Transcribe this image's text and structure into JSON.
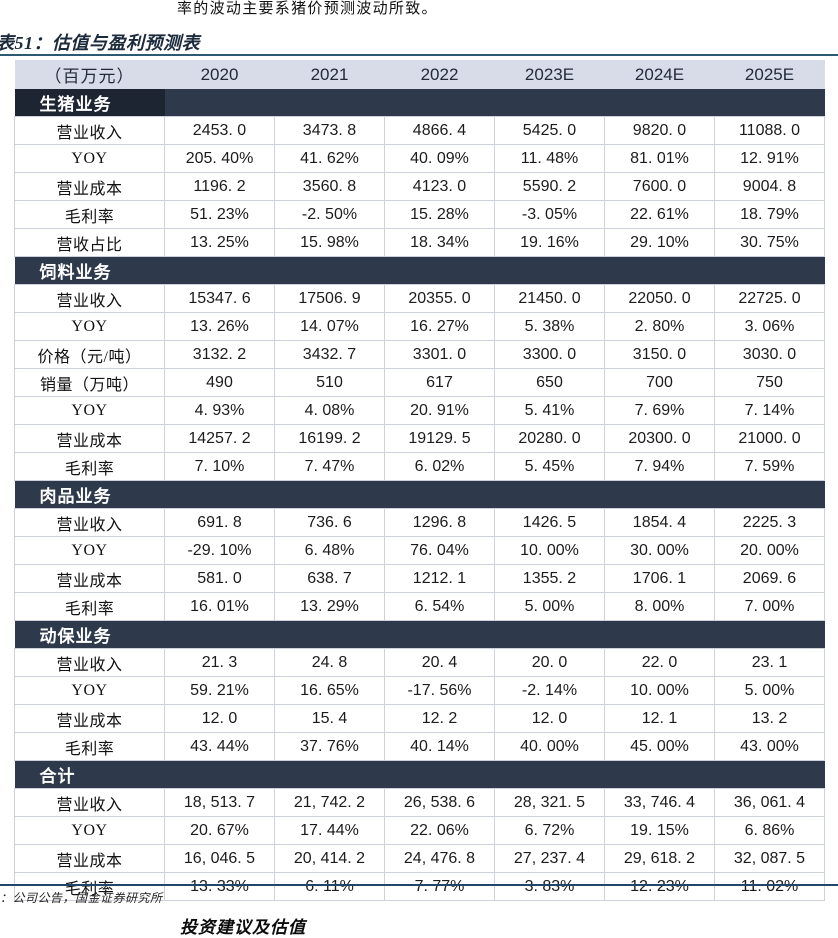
{
  "page": {
    "top_paragraph": "率的波动主要系猪价预测波动所致。",
    "table_title": "表51：估值与盈利预测表",
    "source_note": "：公司公告，国金证券研究所",
    "bottom_heading": "投资建议及估值"
  },
  "table": {
    "unit_label": "（百万元）",
    "columns": [
      "2020",
      "2021",
      "2022",
      "2023E",
      "2024E",
      "2025E"
    ],
    "sections": [
      {
        "title": "生猪业务",
        "rows": [
          {
            "label": "营业收入",
            "values": [
              "2453. 0",
              "3473. 8",
              "4866. 4",
              "5425. 0",
              "9820. 0",
              "11088. 0"
            ]
          },
          {
            "label": "YOY",
            "values": [
              "205. 40%",
              "41. 62%",
              "40. 09%",
              "11. 48%",
              "81. 01%",
              "12. 91%"
            ]
          },
          {
            "label": "营业成本",
            "values": [
              "1196. 2",
              "3560. 8",
              "4123. 0",
              "5590. 2",
              "7600. 0",
              "9004. 8"
            ]
          },
          {
            "label": "毛利率",
            "values": [
              "51. 23%",
              "-2. 50%",
              "15. 28%",
              "-3. 05%",
              "22. 61%",
              "18. 79%"
            ]
          },
          {
            "label": "营收占比",
            "values": [
              "13. 25%",
              "15. 98%",
              "18. 34%",
              "19. 16%",
              "29. 10%",
              "30. 75%"
            ]
          }
        ]
      },
      {
        "title": "饲料业务",
        "rows": [
          {
            "label": "营业收入",
            "values": [
              "15347. 6",
              "17506. 9",
              "20355. 0",
              "21450. 0",
              "22050. 0",
              "22725. 0"
            ]
          },
          {
            "label": "YOY",
            "values": [
              "13. 26%",
              "14. 07%",
              "16. 27%",
              "5. 38%",
              "2. 80%",
              "3. 06%"
            ]
          },
          {
            "label": "价格（元/吨）",
            "values": [
              "3132. 2",
              "3432. 7",
              "3301. 0",
              "3300. 0",
              "3150. 0",
              "3030. 0"
            ]
          },
          {
            "label": "销量（万吨）",
            "values": [
              "490",
              "510",
              "617",
              "650",
              "700",
              "750"
            ]
          },
          {
            "label": "YOY",
            "values": [
              "4. 93%",
              "4. 08%",
              "20. 91%",
              "5. 41%",
              "7. 69%",
              "7. 14%"
            ]
          },
          {
            "label": "营业成本",
            "values": [
              "14257. 2",
              "16199. 2",
              "19129. 5",
              "20280. 0",
              "20300. 0",
              "21000. 0"
            ]
          },
          {
            "label": "毛利率",
            "values": [
              "7. 10%",
              "7. 47%",
              "6. 02%",
              "5. 45%",
              "7. 94%",
              "7. 59%"
            ]
          }
        ]
      },
      {
        "title": "肉品业务",
        "rows": [
          {
            "label": "营业收入",
            "values": [
              "691. 8",
              "736. 6",
              "1296. 8",
              "1426. 5",
              "1854. 4",
              "2225. 3"
            ]
          },
          {
            "label": "YOY",
            "values": [
              "-29. 10%",
              "6. 48%",
              "76. 04%",
              "10. 00%",
              "30. 00%",
              "20. 00%"
            ]
          },
          {
            "label": "营业成本",
            "values": [
              "581. 0",
              "638. 7",
              "1212. 1",
              "1355. 2",
              "1706. 1",
              "2069. 6"
            ]
          },
          {
            "label": "毛利率",
            "values": [
              "16. 01%",
              "13. 29%",
              "6. 54%",
              "5. 00%",
              "8. 00%",
              "7. 00%"
            ]
          }
        ]
      },
      {
        "title": "动保业务",
        "rows": [
          {
            "label": "营业收入",
            "values": [
              "21. 3",
              "24. 8",
              "20. 4",
              "20. 0",
              "22. 0",
              "23. 1"
            ]
          },
          {
            "label": "YOY",
            "values": [
              "59. 21%",
              "16. 65%",
              "-17. 56%",
              "-2. 14%",
              "10. 00%",
              "5. 00%"
            ]
          },
          {
            "label": "营业成本",
            "values": [
              "12. 0",
              "15. 4",
              "12. 2",
              "12. 0",
              "12. 1",
              "13. 2"
            ]
          },
          {
            "label": "毛利率",
            "values": [
              "43. 44%",
              "37. 76%",
              "40. 14%",
              "40. 00%",
              "45. 00%",
              "43. 00%"
            ]
          }
        ]
      },
      {
        "title": "合计",
        "rows": [
          {
            "label": "营业收入",
            "values": [
              "18, 513. 7",
              "21, 742. 2",
              "26, 538. 6",
              "28, 321. 5",
              "33, 746. 4",
              "36, 061. 4"
            ]
          },
          {
            "label": "YOY",
            "values": [
              "20. 67%",
              "17. 44%",
              "22. 06%",
              "6. 72%",
              "19. 15%",
              "6. 86%"
            ]
          },
          {
            "label": "营业成本",
            "values": [
              "16, 046. 5",
              "20, 414. 2",
              "24, 476. 8",
              "27, 237. 4",
              "29, 618. 2",
              "32, 087. 5"
            ]
          },
          {
            "label": "毛利率",
            "values": [
              "13. 33%",
              "6. 11%",
              "7. 77%",
              "3. 83%",
              "12. 23%",
              "11. 02%"
            ]
          }
        ]
      }
    ]
  },
  "colors": {
    "header_bg": "#d8dbe8",
    "section_bg": "#2e3a4c",
    "section_bg_dark": "#1d2533",
    "grid_line": "#cdd1da",
    "rule_top": "#2c5a75",
    "rule_bottom": "#23456b"
  }
}
